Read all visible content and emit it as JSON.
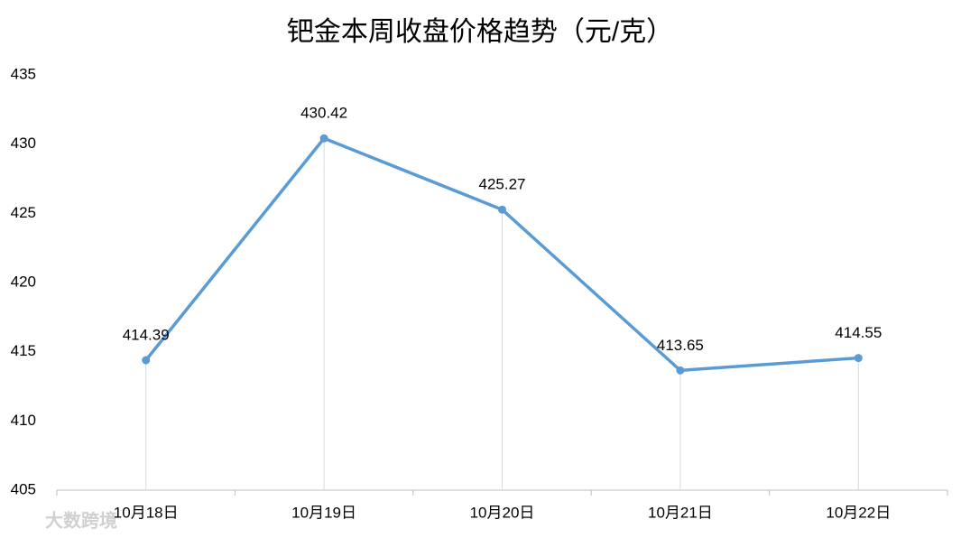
{
  "chart_data": {
    "type": "line",
    "title": "钯金本周收盘价格趋势（元/克）",
    "categories": [
      "10月18日",
      "10月19日",
      "10月20日",
      "10月21日",
      "10月22日"
    ],
    "values": [
      414.39,
      430.42,
      425.27,
      413.65,
      414.55
    ],
    "color": "#5b9bd5",
    "ylim": [
      405,
      435
    ],
    "yticks": [
      405,
      410,
      415,
      420,
      425,
      430,
      435
    ],
    "drop_lines": true,
    "watermark": "大数跨境"
  }
}
